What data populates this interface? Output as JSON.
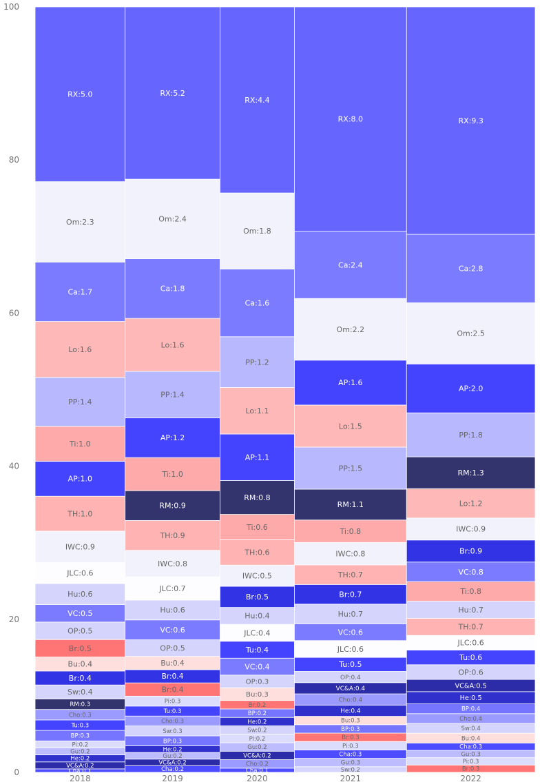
{
  "chart_data": {
    "type": "bar",
    "subtype": "marimekko",
    "title": "",
    "xlabel": "",
    "ylabel": "",
    "ylim": [
      0,
      100
    ],
    "yticks": [
      0,
      20,
      40,
      60,
      80,
      100
    ],
    "grid": false,
    "legend": "none",
    "colors": {
      "RX": "#6666ff",
      "Om": "#f2f2fc",
      "Ca": "#7b7bff",
      "Lo": "#ffb8b8",
      "PP": "#b8b8ff",
      "Ti": "#ffaaaa",
      "AP": "#4444ff",
      "TH": "#ffb3b3",
      "IWC": "#f2f2fc",
      "JLC": "#fdfdff",
      "Hu": "#d4d4fc",
      "VC": "#7b7bff",
      "OP": "#d4d4fc",
      "BrR": "#ff7575",
      "Bu": "#ffdede",
      "BrB": "#3333e6",
      "Sw": "#d4d4fc",
      "RM": "#33336e",
      "Cho": "#9a9aff",
      "Tu": "#4444ff",
      "BP": "#7575ff",
      "Pi": "#dcdcfc",
      "Gu": "#bcbcff",
      "He": "#3030cc",
      "VCA": "#2c2ca8",
      "Cha": "#4d4dff"
    },
    "categories": [
      "2018",
      "2019",
      "2020",
      "2021",
      "2022"
    ],
    "columns": [
      {
        "year": "2018",
        "segments": [
          {
            "label": "Cha",
            "color": "Cha",
            "value": 0.1
          },
          {
            "label": "VC&A",
            "color": "VCA",
            "value": 0.2
          },
          {
            "label": "He",
            "color": "He",
            "value": 0.2
          },
          {
            "label": "Gu",
            "color": "Gu",
            "value": 0.2
          },
          {
            "label": "Pi",
            "color": "Pi",
            "value": 0.2
          },
          {
            "label": "BP",
            "color": "BP",
            "value": 0.3
          },
          {
            "label": "Tu",
            "color": "Tu",
            "value": 0.3
          },
          {
            "label": "Cho",
            "color": "Cho",
            "value": 0.3
          },
          {
            "label": "RM",
            "color": "RM",
            "value": 0.3
          },
          {
            "label": "Sw",
            "color": "Sw",
            "value": 0.4
          },
          {
            "label": "Br",
            "color": "BrB",
            "value": 0.4
          },
          {
            "label": "Bu",
            "color": "Bu",
            "value": 0.4
          },
          {
            "label": "Br",
            "color": "BrR",
            "value": 0.5
          },
          {
            "label": "OP",
            "color": "OP",
            "value": 0.5
          },
          {
            "label": "VC",
            "color": "VC",
            "value": 0.5
          },
          {
            "label": "Hu",
            "color": "Hu",
            "value": 0.6
          },
          {
            "label": "JLC",
            "color": "JLC",
            "value": 0.6
          },
          {
            "label": "IWC",
            "color": "IWC",
            "value": 0.9
          },
          {
            "label": "TH",
            "color": "TH",
            "value": 1.0
          },
          {
            "label": "AP",
            "color": "AP",
            "value": 1.0
          },
          {
            "label": "Ti",
            "color": "Ti",
            "value": 1.0
          },
          {
            "label": "PP",
            "color": "PP",
            "value": 1.4
          },
          {
            "label": "Lo",
            "color": "Lo",
            "value": 1.6
          },
          {
            "label": "Ca",
            "color": "Ca",
            "value": 1.7
          },
          {
            "label": "Om",
            "color": "Om",
            "value": 2.3
          },
          {
            "label": "RX",
            "color": "RX",
            "value": 5.0
          }
        ]
      },
      {
        "year": "2019",
        "segments": [
          {
            "label": "Cha",
            "color": "Cha",
            "value": 0.2
          },
          {
            "label": "VC&A",
            "color": "VCA",
            "value": 0.2
          },
          {
            "label": "Gu",
            "color": "Gu",
            "value": 0.2
          },
          {
            "label": "He",
            "color": "He",
            "value": 0.2
          },
          {
            "label": "BP",
            "color": "BP",
            "value": 0.3
          },
          {
            "label": "Sw",
            "color": "Sw",
            "value": 0.3
          },
          {
            "label": "Cho",
            "color": "Cho",
            "value": 0.3
          },
          {
            "label": "Tu",
            "color": "Tu",
            "value": 0.3
          },
          {
            "label": "Pi",
            "color": "Pi",
            "value": 0.3
          },
          {
            "label": "Br",
            "color": "BrR",
            "value": 0.4
          },
          {
            "label": "Br",
            "color": "BrB",
            "value": 0.4
          },
          {
            "label": "Bu",
            "color": "Bu",
            "value": 0.4
          },
          {
            "label": "OP",
            "color": "OP",
            "value": 0.5
          },
          {
            "label": "VC",
            "color": "VC",
            "value": 0.6
          },
          {
            "label": "Hu",
            "color": "Hu",
            "value": 0.6
          },
          {
            "label": "JLC",
            "color": "JLC",
            "value": 0.7
          },
          {
            "label": "IWC",
            "color": "IWC",
            "value": 0.8
          },
          {
            "label": "TH",
            "color": "TH",
            "value": 0.9
          },
          {
            "label": "RM",
            "color": "RM",
            "value": 0.9
          },
          {
            "label": "Ti",
            "color": "Ti",
            "value": 1.0
          },
          {
            "label": "AP",
            "color": "AP",
            "value": 1.2
          },
          {
            "label": "PP",
            "color": "PP",
            "value": 1.4
          },
          {
            "label": "Lo",
            "color": "Lo",
            "value": 1.6
          },
          {
            "label": "Ca",
            "color": "Ca",
            "value": 1.8
          },
          {
            "label": "Om",
            "color": "Om",
            "value": 2.4
          },
          {
            "label": "RX",
            "color": "RX",
            "value": 5.2
          }
        ]
      },
      {
        "year": "2020",
        "segments": [
          {
            "label": "Cha",
            "color": "Cha",
            "value": 0.1
          },
          {
            "label": "Cho",
            "color": "Cho",
            "value": 0.2
          },
          {
            "label": "VC&A",
            "color": "VCA",
            "value": 0.2
          },
          {
            "label": "Gu",
            "color": "Gu",
            "value": 0.2
          },
          {
            "label": "Pi",
            "color": "Pi",
            "value": 0.2
          },
          {
            "label": "Sw",
            "color": "Sw",
            "value": 0.2
          },
          {
            "label": "He",
            "color": "He",
            "value": 0.2
          },
          {
            "label": "BP",
            "color": "BP",
            "value": 0.2
          },
          {
            "label": "Br",
            "color": "BrR",
            "value": 0.2
          },
          {
            "label": "Bu",
            "color": "Bu",
            "value": 0.3
          },
          {
            "label": "OP",
            "color": "OP",
            "value": 0.3
          },
          {
            "label": "VC",
            "color": "VC",
            "value": 0.4
          },
          {
            "label": "Tu",
            "color": "Tu",
            "value": 0.4
          },
          {
            "label": "JLC",
            "color": "JLC",
            "value": 0.4
          },
          {
            "label": "Hu",
            "color": "Hu",
            "value": 0.4
          },
          {
            "label": "Br",
            "color": "BrB",
            "value": 0.5
          },
          {
            "label": "IWC",
            "color": "IWC",
            "value": 0.5
          },
          {
            "label": "TH",
            "color": "TH",
            "value": 0.6
          },
          {
            "label": "Ti",
            "color": "Ti",
            "value": 0.6
          },
          {
            "label": "RM",
            "color": "RM",
            "value": 0.8
          },
          {
            "label": "AP",
            "color": "AP",
            "value": 1.1
          },
          {
            "label": "Lo",
            "color": "Lo",
            "value": 1.1
          },
          {
            "label": "PP",
            "color": "PP",
            "value": 1.2
          },
          {
            "label": "Ca",
            "color": "Ca",
            "value": 1.6
          },
          {
            "label": "Om",
            "color": "Om",
            "value": 1.8
          },
          {
            "label": "RX",
            "color": "RX",
            "value": 4.4
          }
        ]
      },
      {
        "year": "2021",
        "segments": [
          {
            "label": "Sw",
            "color": "Sw",
            "value": 0.2
          },
          {
            "label": "Gu",
            "color": "Gu",
            "value": 0.3
          },
          {
            "label": "Cha",
            "color": "Cha",
            "value": 0.3
          },
          {
            "label": "Pi",
            "color": "Pi",
            "value": 0.3
          },
          {
            "label": "Br",
            "color": "BrR",
            "value": 0.3
          },
          {
            "label": "BP",
            "color": "BP",
            "value": 0.3
          },
          {
            "label": "Bu",
            "color": "Bu",
            "value": 0.3
          },
          {
            "label": "He",
            "color": "He",
            "value": 0.4
          },
          {
            "label": "Cho",
            "color": "Cho",
            "value": 0.4
          },
          {
            "label": "VC&A",
            "color": "VCA",
            "value": 0.4
          },
          {
            "label": "OP",
            "color": "OP",
            "value": 0.4
          },
          {
            "label": "Tu",
            "color": "Tu",
            "value": 0.5
          },
          {
            "label": "JLC",
            "color": "JLC",
            "value": 0.6
          },
          {
            "label": "VC",
            "color": "VC",
            "value": 0.6
          },
          {
            "label": "Hu",
            "color": "Hu",
            "value": 0.7
          },
          {
            "label": "Br",
            "color": "BrB",
            "value": 0.7
          },
          {
            "label": "TH",
            "color": "TH",
            "value": 0.7
          },
          {
            "label": "IWC",
            "color": "IWC",
            "value": 0.8
          },
          {
            "label": "Ti",
            "color": "Ti",
            "value": 0.8
          },
          {
            "label": "RM",
            "color": "RM",
            "value": 1.1
          },
          {
            "label": "PP",
            "color": "PP",
            "value": 1.5
          },
          {
            "label": "Lo",
            "color": "Lo",
            "value": 1.5
          },
          {
            "label": "AP",
            "color": "AP",
            "value": 1.6
          },
          {
            "label": "Om",
            "color": "Om",
            "value": 2.2
          },
          {
            "label": "Ca",
            "color": "Ca",
            "value": 2.4
          },
          {
            "label": "RX",
            "color": "RX",
            "value": 8.0
          }
        ]
      },
      {
        "year": "2022",
        "segments": [
          {
            "label": "Br",
            "color": "BrR",
            "value": 0.3
          },
          {
            "label": "Pi",
            "color": "Pi",
            "value": 0.3
          },
          {
            "label": "Gu",
            "color": "Gu",
            "value": 0.3
          },
          {
            "label": "Cha",
            "color": "Cha",
            "value": 0.3
          },
          {
            "label": "Bu",
            "color": "Bu",
            "value": 0.4
          },
          {
            "label": "Sw",
            "color": "Sw",
            "value": 0.4
          },
          {
            "label": "Cho",
            "color": "Cho",
            "value": 0.4
          },
          {
            "label": "BP",
            "color": "BP",
            "value": 0.4
          },
          {
            "label": "He",
            "color": "He",
            "value": 0.5
          },
          {
            "label": "VC&A",
            "color": "VCA",
            "value": 0.5
          },
          {
            "label": "OP",
            "color": "OP",
            "value": 0.6
          },
          {
            "label": "Tu",
            "color": "Tu",
            "value": 0.6
          },
          {
            "label": "JLC",
            "color": "JLC",
            "value": 0.6
          },
          {
            "label": "TH",
            "color": "TH",
            "value": 0.7
          },
          {
            "label": "Hu",
            "color": "Hu",
            "value": 0.7
          },
          {
            "label": "Ti",
            "color": "Ti",
            "value": 0.8
          },
          {
            "label": "VC",
            "color": "VC",
            "value": 0.8
          },
          {
            "label": "Br",
            "color": "BrB",
            "value": 0.9
          },
          {
            "label": "IWC",
            "color": "IWC",
            "value": 0.9
          },
          {
            "label": "Lo",
            "color": "Lo",
            "value": 1.2
          },
          {
            "label": "RM",
            "color": "RM",
            "value": 1.3
          },
          {
            "label": "PP",
            "color": "PP",
            "value": 1.8
          },
          {
            "label": "AP",
            "color": "AP",
            "value": 2.0
          },
          {
            "label": "Om",
            "color": "Om",
            "value": 2.5
          },
          {
            "label": "Ca",
            "color": "Ca",
            "value": 2.8
          },
          {
            "label": "RX",
            "color": "RX",
            "value": 9.3
          }
        ]
      }
    ]
  }
}
